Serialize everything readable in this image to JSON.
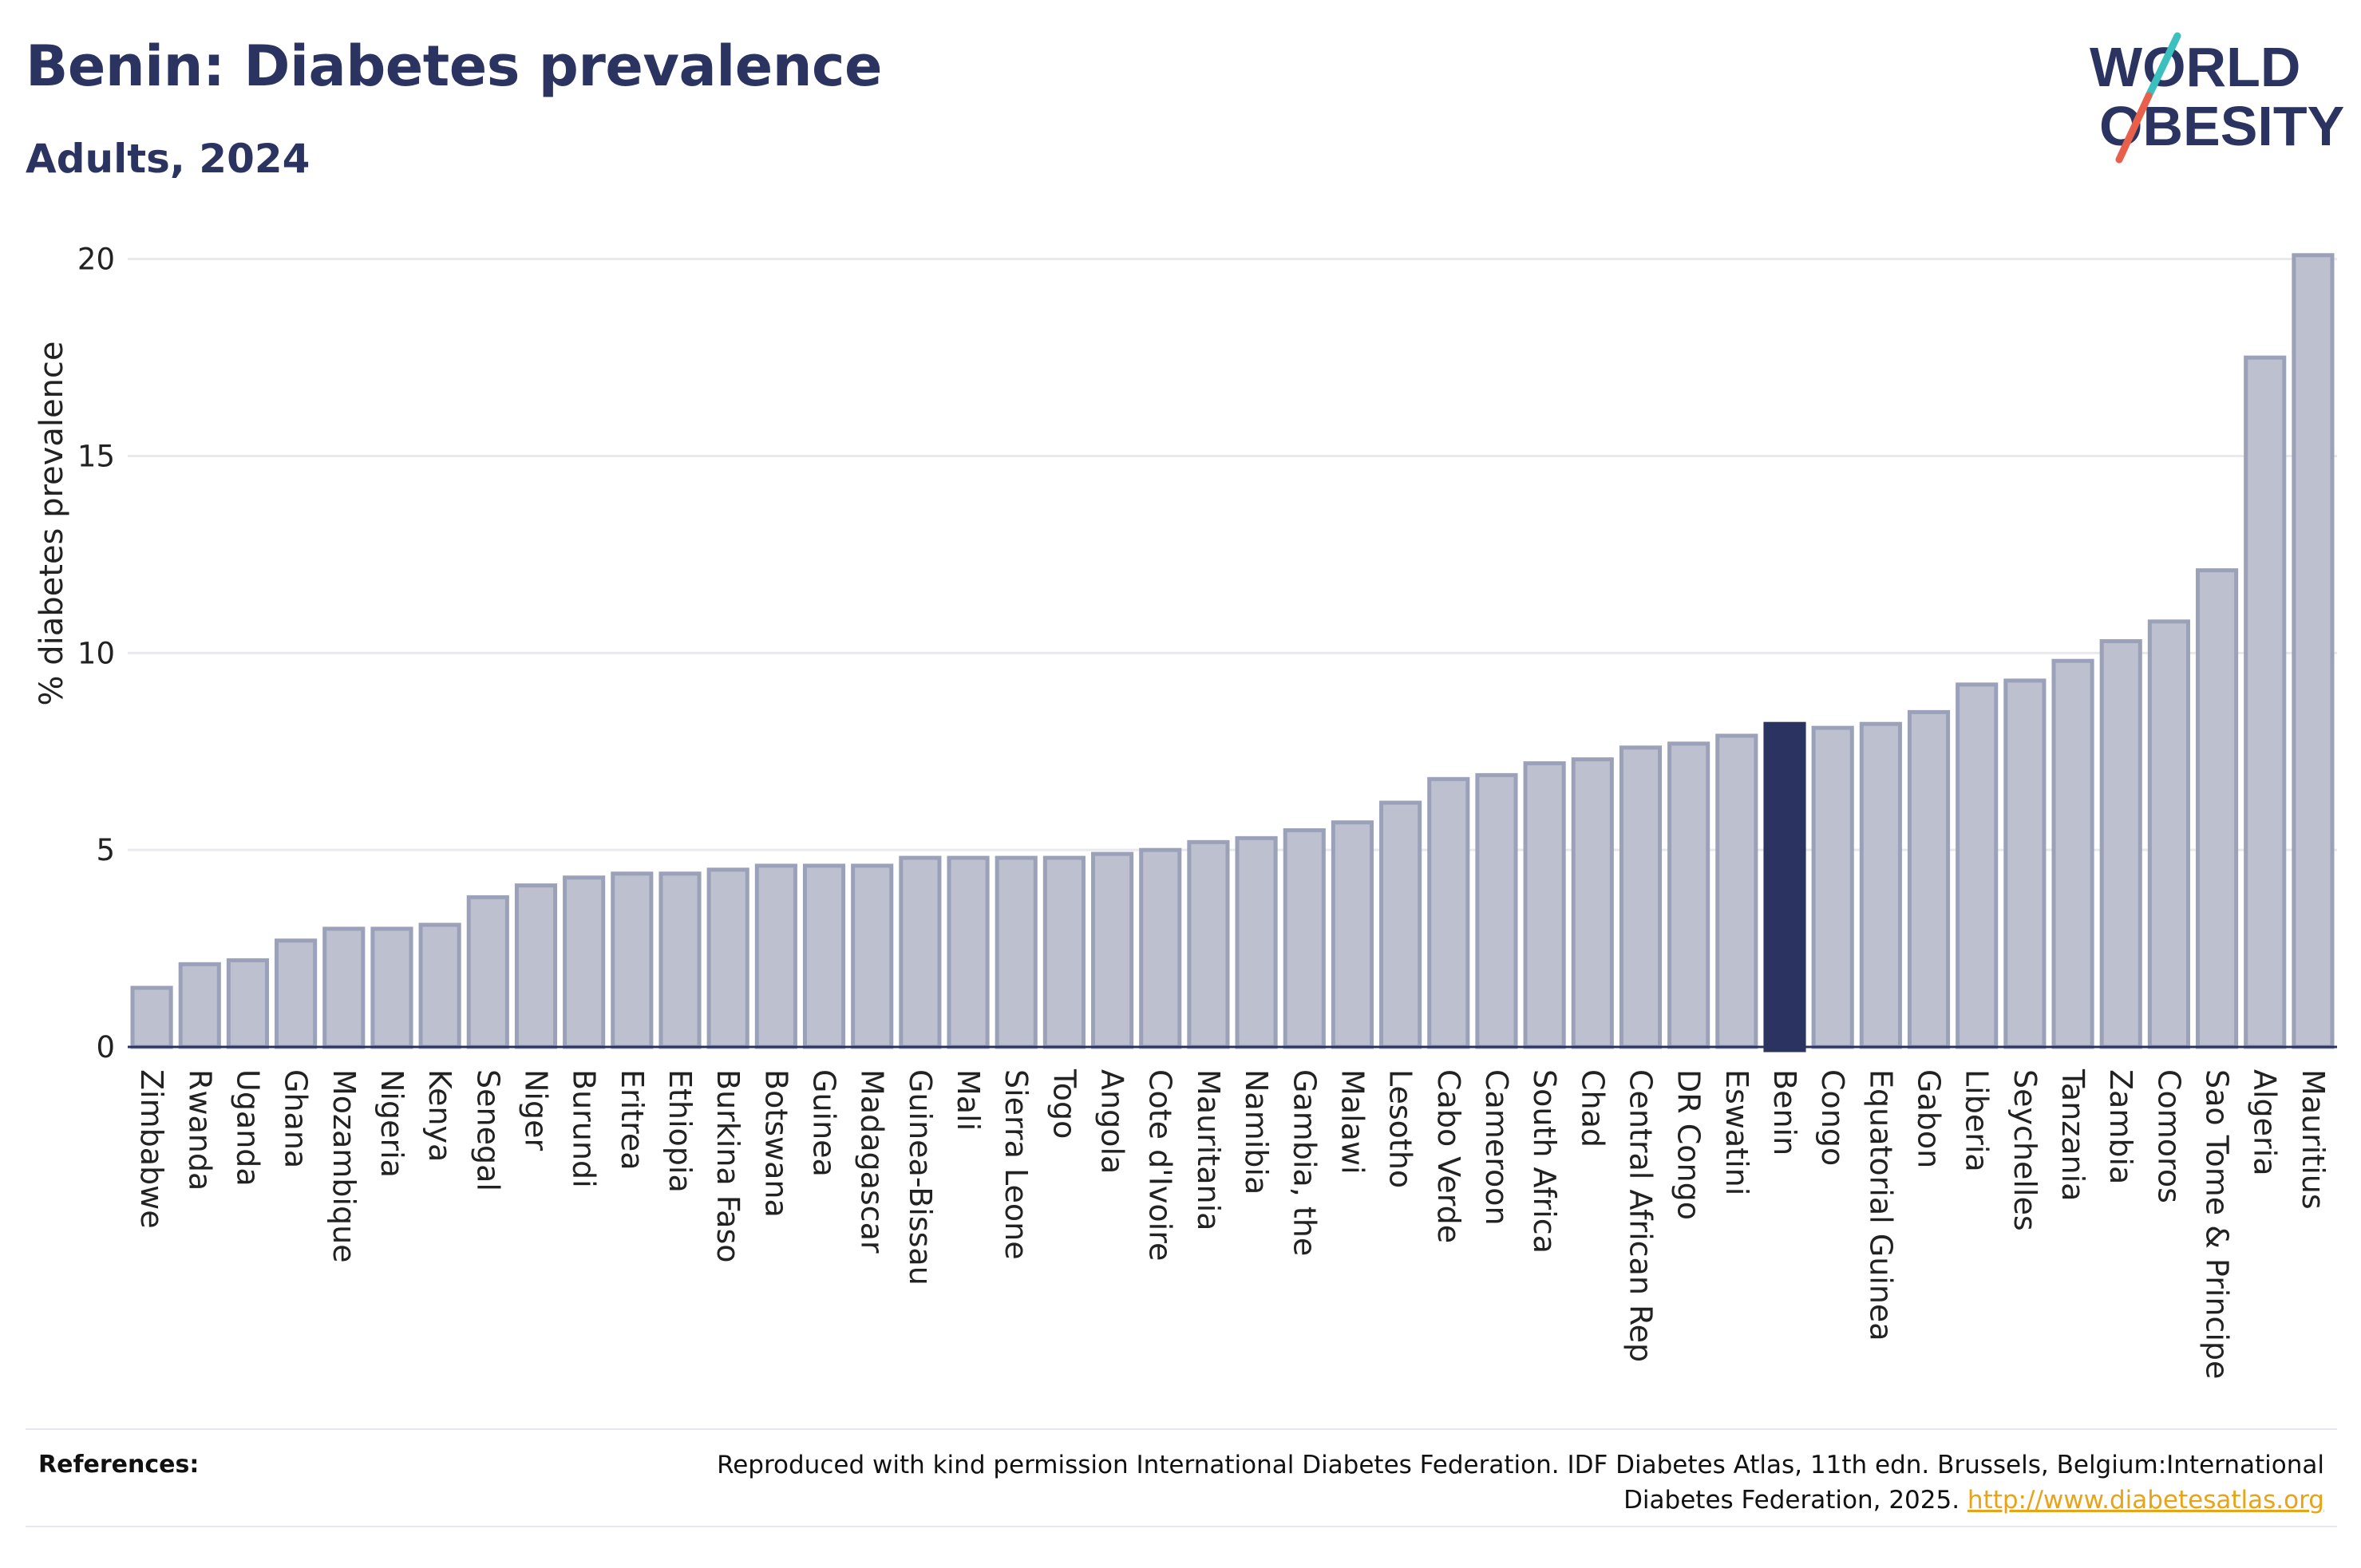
{
  "header": {
    "title": "Benin: Diabetes prevalence",
    "subtitle": "Adults, 2024"
  },
  "logo": {
    "line1": "WORLD",
    "line2": "OBESITY",
    "colors": {
      "text": "#2b3461",
      "slash_teal": "#3bbfbf",
      "slash_red": "#e8604c"
    }
  },
  "references": {
    "label": "References:",
    "text": "Reproduced with kind permission International Diabetes Federation. IDF Diabetes Atlas, 11th edn. Brussels, Belgium:International Diabetes Federation, 2025.",
    "link": "http://www.diabetesatlas.org"
  },
  "chart_data": {
    "type": "bar",
    "title": "Benin: Diabetes prevalence",
    "subtitle": "Adults, 2024",
    "xlabel": "",
    "ylabel": "% diabetes prevalence",
    "ylim": [
      0,
      20.5
    ],
    "yticks": [
      0,
      5,
      10,
      15,
      20
    ],
    "grid": true,
    "highlight": "Benin",
    "colors": {
      "bar": "#bcc0cf",
      "bar_edge": "#9ba1b8",
      "highlight": "#2b3461",
      "grid": "#e8e9ee",
      "axis": "#2b3461"
    },
    "categories": [
      "Zimbabwe",
      "Rwanda",
      "Uganda",
      "Ghana",
      "Mozambique",
      "Nigeria",
      "Kenya",
      "Senegal",
      "Niger",
      "Burundi",
      "Eritrea",
      "Ethiopia",
      "Burkina Faso",
      "Botswana",
      "Guinea",
      "Madagascar",
      "Guinea-Bissau",
      "Mali",
      "Sierra Leone",
      "Togo",
      "Angola",
      "Cote d'Ivoire",
      "Mauritania",
      "Namibia",
      "Gambia, the",
      "Malawi",
      "Lesotho",
      "Cabo Verde",
      "Cameroon",
      "South Africa",
      "Chad",
      "Central African Rep",
      "DR Congo",
      "Eswatini",
      "Benin",
      "Congo",
      "Equatorial Guinea",
      "Gabon",
      "Liberia",
      "Seychelles",
      "Tanzania",
      "Zambia",
      "Comoros",
      "Sao Tome & Principe",
      "Algeria",
      "Mauritius"
    ],
    "values": [
      1.5,
      2.1,
      2.2,
      2.7,
      3.0,
      3.0,
      3.1,
      3.8,
      4.1,
      4.3,
      4.4,
      4.4,
      4.5,
      4.6,
      4.6,
      4.6,
      4.8,
      4.8,
      4.8,
      4.8,
      4.9,
      5.0,
      5.2,
      5.3,
      5.5,
      5.7,
      6.2,
      6.8,
      6.9,
      7.2,
      7.3,
      7.6,
      7.7,
      7.9,
      8.2,
      8.1,
      8.2,
      8.5,
      9.2,
      9.3,
      9.8,
      10.3,
      10.8,
      12.1,
      17.5,
      20.1
    ]
  }
}
